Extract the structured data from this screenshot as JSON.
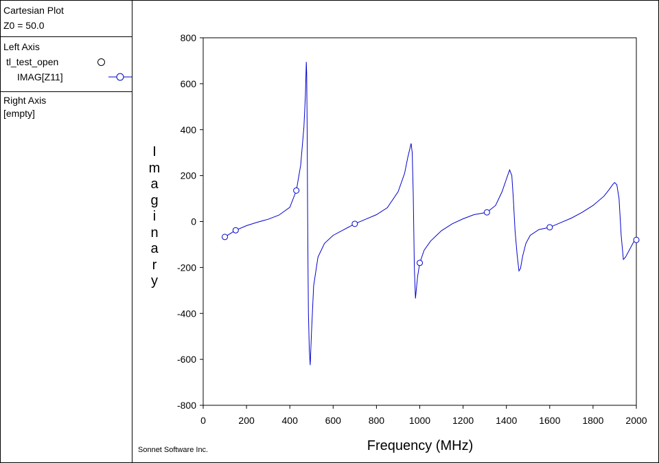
{
  "header": {
    "title": "Cartesian Plot",
    "z0": "Z0 = 50.0"
  },
  "left_axis": {
    "title": "Left Axis",
    "project": "tl_test_open",
    "trace_label": "IMAG[Z11]",
    "trace_color": "#0000cc"
  },
  "right_axis": {
    "title": "Right Axis",
    "content": "[empty]"
  },
  "credit": "Sonnet Software Inc.",
  "chart_data": {
    "type": "line",
    "title": "",
    "xlabel": "Frequency (MHz)",
    "ylabel": "Imaginary",
    "xlim": [
      0,
      2000
    ],
    "ylim": [
      -800,
      800
    ],
    "x_ticks": [
      0,
      200,
      400,
      600,
      800,
      1000,
      1200,
      1400,
      1600,
      1800,
      2000
    ],
    "y_ticks": [
      -800,
      -600,
      -400,
      -200,
      0,
      200,
      400,
      600,
      800
    ],
    "grid": false,
    "series": [
      {
        "name": "IMAG[Z11]",
        "color": "#0000cc",
        "x": [
          100,
          150,
          200,
          250,
          300,
          350,
          400,
          430,
          450,
          465,
          472,
          476,
          478,
          480,
          482,
          484,
          486,
          490,
          494,
          500,
          510,
          530,
          560,
          600,
          650,
          700,
          750,
          800,
          850,
          900,
          930,
          945,
          955,
          960,
          965,
          970,
          975,
          980,
          990,
          1000,
          1020,
          1050,
          1100,
          1150,
          1200,
          1250,
          1310,
          1350,
          1380,
          1400,
          1415,
          1425,
          1432,
          1440,
          1450,
          1458,
          1465,
          1475,
          1490,
          1510,
          1550,
          1600,
          1650,
          1700,
          1750,
          1800,
          1850,
          1875,
          1890,
          1900,
          1910,
          1920,
          1930,
          1940,
          1950,
          1970,
          1990,
          2000
        ],
        "values": [
          -67,
          -38,
          -18,
          -3,
          10,
          28,
          62,
          135,
          245,
          410,
          550,
          695,
          640,
          420,
          50,
          -200,
          -400,
          -560,
          -625,
          -480,
          -280,
          -155,
          -95,
          -60,
          -35,
          -10,
          10,
          30,
          60,
          130,
          210,
          280,
          320,
          340,
          300,
          120,
          -200,
          -335,
          -240,
          -180,
          -125,
          -85,
          -40,
          -10,
          12,
          30,
          40,
          70,
          130,
          185,
          225,
          200,
          100,
          -40,
          -150,
          -215,
          -205,
          -150,
          -95,
          -60,
          -35,
          -25,
          -5,
          15,
          40,
          70,
          110,
          140,
          160,
          170,
          160,
          100,
          -60,
          -165,
          -155,
          -120,
          -85,
          -80
        ]
      }
    ],
    "markers": [
      {
        "x": 100,
        "y": -67
      },
      {
        "x": 150,
        "y": -38
      },
      {
        "x": 430,
        "y": 135
      },
      {
        "x": 700,
        "y": -10
      },
      {
        "x": 1000,
        "y": -180
      },
      {
        "x": 1310,
        "y": 40
      },
      {
        "x": 1600,
        "y": -25
      },
      {
        "x": 2000,
        "y": -80
      }
    ]
  }
}
